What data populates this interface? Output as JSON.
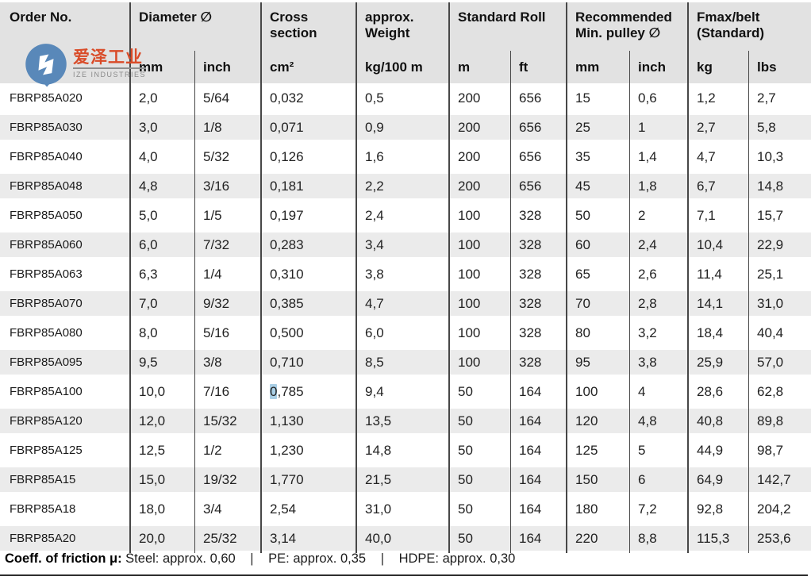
{
  "logo": {
    "cn_name": "爱泽工业",
    "en_name": "IZE INDUSTRIES"
  },
  "table": {
    "groups": [
      {
        "label": "Order No."
      },
      {
        "label": "Diameter ∅"
      },
      {
        "label": "Cross section"
      },
      {
        "label": "approx. Weight"
      },
      {
        "label": "Standard Roll"
      },
      {
        "label": "Recommended Min. pulley ∅"
      },
      {
        "label": "Fmax/belt (Standard)"
      }
    ],
    "subheaders": [
      "mm",
      "inch",
      "cm²",
      "kg/100 m",
      "m",
      "ft",
      "mm",
      "inch",
      "kg",
      "lbs"
    ],
    "rows": [
      [
        "FBRP85A020",
        "2,0",
        "5/64",
        "0,032",
        "0,5",
        "200",
        "656",
        "15",
        "0,6",
        "1,2",
        "2,7"
      ],
      [
        "FBRP85A030",
        "3,0",
        "1/8",
        "0,071",
        "0,9",
        "200",
        "656",
        "25",
        "1",
        "2,7",
        "5,8"
      ],
      [
        "FBRP85A040",
        "4,0",
        "5/32",
        "0,126",
        "1,6",
        "200",
        "656",
        "35",
        "1,4",
        "4,7",
        "10,3"
      ],
      [
        "FBRP85A048",
        "4,8",
        "3/16",
        "0,181",
        "2,2",
        "200",
        "656",
        "45",
        "1,8",
        "6,7",
        "14,8"
      ],
      [
        "FBRP85A050",
        "5,0",
        "1/5",
        "0,197",
        "2,4",
        "100",
        "328",
        "50",
        "2",
        "7,1",
        "15,7"
      ],
      [
        "FBRP85A060",
        "6,0",
        "7/32",
        "0,283",
        "3,4",
        "100",
        "328",
        "60",
        "2,4",
        "10,4",
        "22,9"
      ],
      [
        "FBRP85A063",
        "6,3",
        "1/4",
        "0,310",
        "3,8",
        "100",
        "328",
        "65",
        "2,6",
        "11,4",
        "25,1"
      ],
      [
        "FBRP85A070",
        "7,0",
        "9/32",
        "0,385",
        "4,7",
        "100",
        "328",
        "70",
        "2,8",
        "14,1",
        "31,0"
      ],
      [
        "FBRP85A080",
        "8,0",
        "5/16",
        "0,500",
        "6,0",
        "100",
        "328",
        "80",
        "3,2",
        "18,4",
        "40,4"
      ],
      [
        "FBRP85A095",
        "9,5",
        "3/8",
        "0,710",
        "8,5",
        "100",
        "328",
        "95",
        "3,8",
        "25,9",
        "57,0"
      ],
      [
        "FBRP85A100",
        "10,0",
        "7/16",
        "0,785",
        "9,4",
        "50",
        "164",
        "100",
        "4",
        "28,6",
        "62,8"
      ],
      [
        "FBRP85A120",
        "12,0",
        "15/32",
        "1,130",
        "13,5",
        "50",
        "164",
        "120",
        "4,8",
        "40,8",
        "89,8"
      ],
      [
        "FBRP85A125",
        "12,5",
        "1/2",
        "1,230",
        "14,8",
        "50",
        "164",
        "125",
        "5",
        "44,9",
        "98,7"
      ],
      [
        "FBRP85A15",
        "15,0",
        "19/32",
        "1,770",
        "21,5",
        "50",
        "164",
        "150",
        "6",
        "64,9",
        "142,7"
      ],
      [
        "FBRP85A18",
        "18,0",
        "3/4",
        "2,54",
        "31,0",
        "50",
        "164",
        "180",
        "7,2",
        "92,8",
        "204,2"
      ],
      [
        "FBRP85A20",
        "20,0",
        "25/32",
        "3,14",
        "40,0",
        "50",
        "164",
        "220",
        "8,8",
        "115,3",
        "253,6"
      ]
    ],
    "highlight": {
      "row": 10,
      "col": 3,
      "selected_text": "0",
      "color": "#a9cfe6"
    }
  },
  "footer": {
    "label": "Coeff. of friction μ:",
    "items": [
      "Steel: approx. 0,60",
      "PE: approx. 0,35",
      "HDPE: approx. 0,30"
    ],
    "separator": "|"
  },
  "colors": {
    "header_bg": "#e2e2e2",
    "row_stripe": "#ebebeb",
    "grid_line": "#474747",
    "selection": "#a9cfe6",
    "logo_blue": "#5988b9",
    "logo_red": "#d94b28",
    "logo_gray": "#8a8a8a"
  }
}
